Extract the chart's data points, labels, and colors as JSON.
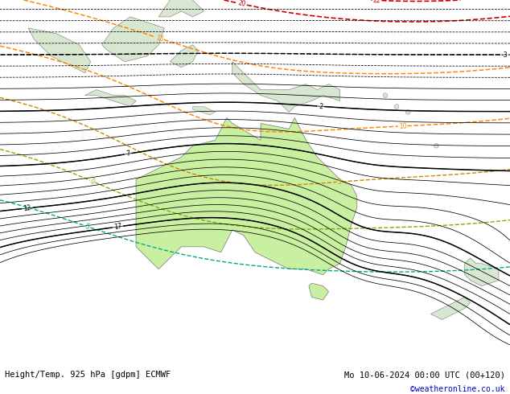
{
  "title_left": "Height/Temp. 925 hPa [gdpm] ECMWF",
  "title_right": "Mo 10-06-2024 00:00 UTC (00+120)",
  "watermark": "©weatheronline.co.uk",
  "ocean_color": "#c8d4dc",
  "land_color": "#c8f0a0",
  "other_land_color": "#d8e8d0",
  "figsize": [
    6.34,
    4.9
  ],
  "dpi": 100,
  "extent": [
    90,
    180,
    -55,
    10
  ],
  "title_fontsize": 7.5,
  "watermark_fontsize": 7.0
}
